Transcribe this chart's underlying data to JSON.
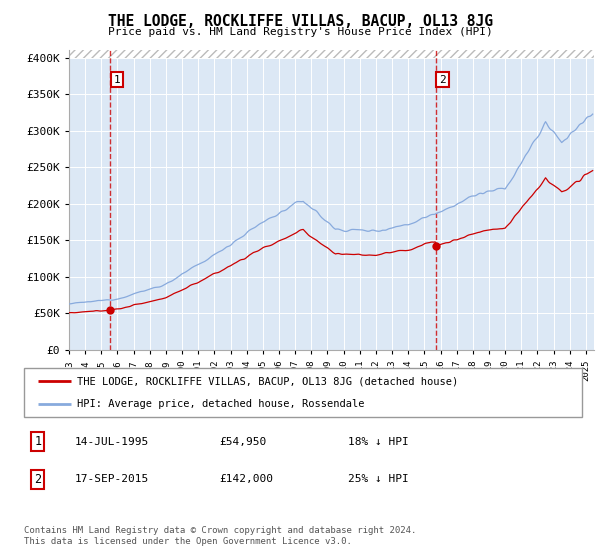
{
  "title": "THE LODGE, ROCKLIFFE VILLAS, BACUP, OL13 8JG",
  "subtitle": "Price paid vs. HM Land Registry's House Price Index (HPI)",
  "sale1_date": "14-JUL-1995",
  "sale1_price": 54950,
  "sale1_label": "18% ↓ HPI",
  "sale1_x": 1995.542,
  "sale2_date": "17-SEP-2015",
  "sale2_price": 142000,
  "sale2_label": "25% ↓ HPI",
  "sale2_x": 2015.708,
  "legend_line1": "THE LODGE, ROCKLIFFE VILLAS, BACUP, OL13 8JG (detached house)",
  "legend_line2": "HPI: Average price, detached house, Rossendale",
  "footer": "Contains HM Land Registry data © Crown copyright and database right 2024.\nThis data is licensed under the Open Government Licence v3.0.",
  "sale_color": "#cc0000",
  "hpi_color": "#88aadd",
  "plot_bg_color": "#dce8f5",
  "ylim": [
    0,
    400000
  ],
  "xlim_start": 1993.0,
  "xlim_end": 2025.5
}
